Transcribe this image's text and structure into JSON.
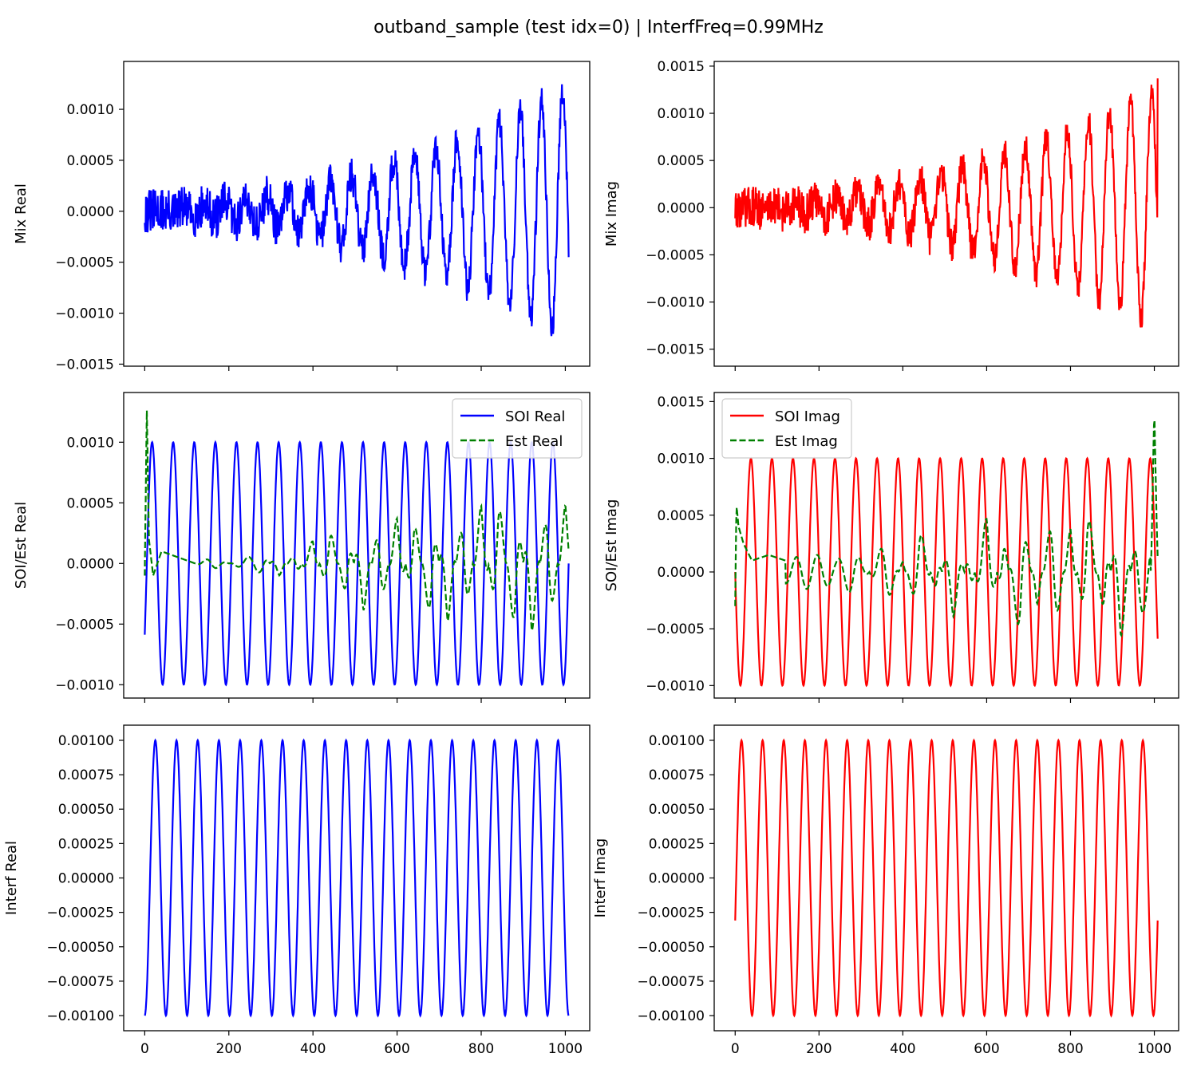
{
  "figure": {
    "title": "outband_sample (test idx=0) | InterfFreq=0.99MHz"
  },
  "chart_data": [
    {
      "type": "line",
      "ylabel": "Mix Real",
      "xlim": [
        -50,
        1058
      ],
      "ylim": [
        -0.00152,
        0.00147
      ],
      "yticks": [
        -0.0015,
        -0.001,
        -0.0005,
        0.0,
        0.0005,
        0.001
      ],
      "ytick_labels": [
        "−0.0015",
        "−0.0010",
        "−0.0005",
        "0.0000",
        "0.0005",
        "0.0010"
      ],
      "xticks": [
        0,
        200,
        400,
        600,
        800,
        1000
      ],
      "xtick_labels": [],
      "legend": null,
      "series": [
        {
          "color": "#0000ff",
          "style": "solid",
          "x": [
            0,
            50,
            100,
            150,
            200,
            250,
            300,
            350,
            400,
            450,
            500,
            550,
            600,
            650,
            700,
            750,
            800,
            850,
            900,
            950,
            1000,
            1008
          ],
          "values": [
            0.00015,
            0.0002,
            -0.0003,
            0.0002,
            -0.00015,
            0.0001,
            0.0002,
            -0.0004,
            0.0005,
            0.0007,
            -0.0008,
            0.0009,
            -0.0009,
            0.0011,
            0.0012,
            -0.0011,
            0.0013,
            -0.0012,
            0.0013,
            -0.0013,
            0.0011,
            -0.00045
          ]
        }
      ]
    },
    {
      "type": "line",
      "ylabel": "Mix Imag",
      "xlim": [
        -50,
        1058
      ],
      "ylim": [
        -0.00168,
        0.00155
      ],
      "yticks": [
        -0.0015,
        -0.001,
        -0.0005,
        0.0,
        0.0005,
        0.001,
        0.0015
      ],
      "ytick_labels": [
        "−0.0015",
        "−0.0010",
        "−0.0005",
        "0.0000",
        "0.0005",
        "0.0010",
        "0.0015"
      ],
      "xticks": [
        0,
        200,
        400,
        600,
        800,
        1000
      ],
      "xtick_labels": [],
      "legend": null,
      "series": [
        {
          "color": "#ff0000",
          "style": "solid",
          "x": [
            0,
            50,
            100,
            150,
            200,
            250,
            300,
            350,
            400,
            450,
            500,
            550,
            600,
            650,
            700,
            750,
            800,
            850,
            900,
            950,
            980,
            1008
          ],
          "values": [
            -0.0002,
            0.0003,
            -0.0002,
            0.0003,
            -0.0003,
            0.0004,
            0.0005,
            -0.0006,
            0.0006,
            0.0008,
            -0.0009,
            0.0009,
            -0.001,
            0.0011,
            0.0012,
            -0.0012,
            0.0012,
            -0.0013,
            0.0013,
            -0.0012,
            -0.0015,
            0.00137
          ]
        }
      ]
    },
    {
      "type": "line",
      "ylabel": "SOI/Est Real",
      "xlim": [
        -50,
        1058
      ],
      "ylim": [
        -0.00111,
        0.00141
      ],
      "yticks": [
        -0.001,
        -0.0005,
        0.0,
        0.0005,
        0.001
      ],
      "ytick_labels": [
        "−0.0010",
        "−0.0005",
        "0.0000",
        "0.0005",
        "0.0010"
      ],
      "xticks": [
        0,
        200,
        400,
        600,
        800,
        1000
      ],
      "xtick_labels": [],
      "legend": "upper right",
      "series": [
        {
          "name": "SOI Real",
          "color": "#0000ff",
          "style": "solid",
          "amplitude": 0.001,
          "cycles": 20.1,
          "x_range": [
            0,
            1008
          ],
          "phase_start": 0.65
        },
        {
          "name": "Est Real",
          "color": "#008000",
          "style": "dashed",
          "x": [
            0,
            5,
            10,
            20,
            40,
            80,
            120,
            160,
            200,
            240,
            280,
            320,
            360,
            400,
            440,
            480,
            520,
            560,
            600,
            640,
            680,
            720,
            760,
            800,
            840,
            880,
            920,
            960,
            1000,
            1008
          ],
          "values": [
            -0.0001,
            0.00127,
            0.0002,
            -0.0001,
            0.0001,
            5e-05,
            0.0,
            5e-05,
            0.0,
            5e-05,
            8e-05,
            -0.0001,
            0.0001,
            -0.0002,
            0.0003,
            -0.0003,
            0.0004,
            -0.0004,
            0.0004,
            -0.0004,
            0.0005,
            -0.0005,
            0.0005,
            -0.0005,
            0.0006,
            -0.0006,
            0.0006,
            -0.0006,
            0.0005,
            0.0003
          ]
        }
      ]
    },
    {
      "type": "line",
      "ylabel": "SOI/Est Imag",
      "xlim": [
        -50,
        1058
      ],
      "ylim": [
        -0.00111,
        0.00158
      ],
      "yticks": [
        -0.001,
        -0.0005,
        0.0,
        0.0005,
        0.001,
        0.0015
      ],
      "ytick_labels": [
        "−0.0010",
        "−0.0005",
        "0.0000",
        "0.0005",
        "0.0010",
        "0.0015"
      ],
      "xticks": [
        0,
        200,
        400,
        600,
        800,
        1000
      ],
      "xtick_labels": [],
      "legend": "upper left",
      "series": [
        {
          "name": "SOI Imag",
          "color": "#ff0000",
          "style": "solid",
          "amplitude": 0.001,
          "cycles": 20.1,
          "x_range": [
            0,
            1008
          ],
          "phase_start": 0.25
        },
        {
          "name": "Est Imag",
          "color": "#008000",
          "style": "dashed",
          "x": [
            0,
            3,
            8,
            20,
            40,
            80,
            120,
            160,
            200,
            240,
            280,
            320,
            360,
            400,
            440,
            480,
            520,
            560,
            600,
            640,
            680,
            720,
            760,
            800,
            840,
            880,
            920,
            960,
            990,
            1000,
            1008
          ],
          "values": [
            -0.0003,
            0.0006,
            0.0004,
            0.00025,
            0.0001,
            0.00015,
            0.0001,
            0.00015,
            0.00015,
            0.0001,
            0.0002,
            0.0,
            0.0003,
            -0.0001,
            0.0004,
            -0.0002,
            0.0004,
            -0.0002,
            0.0005,
            -0.0003,
            0.0006,
            -0.0003,
            0.0006,
            -0.0004,
            0.0006,
            -0.0004,
            0.0006,
            -0.0004,
            -0.0003,
            0.00145,
            0.0004
          ]
        }
      ]
    },
    {
      "type": "line",
      "ylabel": "Interf Real",
      "xlim": [
        -50,
        1058
      ],
      "ylim": [
        -0.00111,
        0.00111
      ],
      "yticks": [
        -0.001,
        -0.00075,
        -0.0005,
        -0.00025,
        0.0,
        0.00025,
        0.0005,
        0.00075,
        0.001
      ],
      "ytick_labels": [
        "−0.00100",
        "−0.00075",
        "−0.00050",
        "−0.00025",
        "0.00000",
        "0.00025",
        "0.00050",
        "0.00075",
        "0.00100"
      ],
      "xticks": [
        0,
        200,
        400,
        600,
        800,
        1000
      ],
      "xtick_labels": [
        "0",
        "200",
        "400",
        "600",
        "800",
        "1000"
      ],
      "legend": null,
      "series": [
        {
          "color": "#0000ff",
          "style": "solid",
          "amplitude": 0.001,
          "cycles": 20.0,
          "x_range": [
            0,
            1008
          ],
          "phase_start": 0.5
        }
      ]
    },
    {
      "type": "line",
      "ylabel": "Interf Imag",
      "xlim": [
        -50,
        1058
      ],
      "ylim": [
        -0.00111,
        0.00111
      ],
      "yticks": [
        -0.001,
        -0.00075,
        -0.0005,
        -0.00025,
        0.0,
        0.00025,
        0.0005,
        0.00075,
        0.001
      ],
      "ytick_labels": [
        "−0.00100",
        "−0.00075",
        "−0.00050",
        "−0.00025",
        "0.00000",
        "0.00025",
        "0.00050",
        "0.00075",
        "0.00100"
      ],
      "xticks": [
        0,
        200,
        400,
        600,
        800,
        1000
      ],
      "xtick_labels": [
        "0",
        "200",
        "400",
        "600",
        "800",
        "1000"
      ],
      "legend": null,
      "series": [
        {
          "color": "#ff0000",
          "style": "solid",
          "amplitude": 0.001,
          "cycles": 20.0,
          "x_range": [
            0,
            1008
          ],
          "phase_start": 0.7
        }
      ]
    }
  ]
}
